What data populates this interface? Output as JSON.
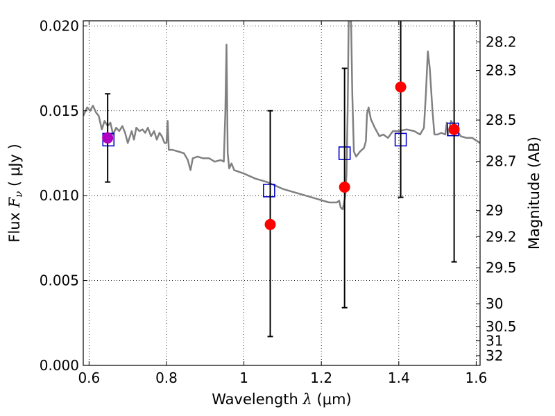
{
  "chart_data": {
    "type": "scatter",
    "xlabel": "Wavelength",
    "xlabel_symbol": "λ",
    "xlabel_unit": "(μm)",
    "ylabel": "Flux",
    "ylabel_symbol": "F",
    "ylabel_subscript": "ν",
    "ylabel_unit": "( μJy )",
    "y2label": "Magnitude (AB)",
    "xlim": [
      0.585,
      1.61
    ],
    "ylim": [
      0.0,
      0.0203
    ],
    "grid": true,
    "x_ticks": [
      {
        "value": 0.6,
        "label": "0.6"
      },
      {
        "value": 0.8,
        "label": "0.8"
      },
      {
        "value": 1.0,
        "label": "1"
      },
      {
        "value": 1.2,
        "label": "1.2"
      },
      {
        "value": 1.4,
        "label": "1.4"
      },
      {
        "value": 1.6,
        "label": "1.6"
      }
    ],
    "y_ticks": [
      {
        "value": 0.0,
        "label": "0.000"
      },
      {
        "value": 0.005,
        "label": "0.005"
      },
      {
        "value": 0.01,
        "label": "0.010"
      },
      {
        "value": 0.015,
        "label": "0.015"
      },
      {
        "value": 0.02,
        "label": "0.020"
      }
    ],
    "y2_ticks": [
      {
        "mag": 28.2,
        "label": "28.2"
      },
      {
        "mag": 28.3,
        "label": "28.3"
      },
      {
        "mag": 28.5,
        "label": "28.5"
      },
      {
        "mag": 28.7,
        "label": "28.7"
      },
      {
        "mag": 29.0,
        "label": "29"
      },
      {
        "mag": 29.2,
        "label": "29.2"
      },
      {
        "mag": 29.5,
        "label": "29.5"
      },
      {
        "mag": 30.0,
        "label": "30"
      },
      {
        "mag": 30.5,
        "label": "30.5"
      },
      {
        "mag": 31.0,
        "label": "31"
      },
      {
        "mag": 32.0,
        "label": "32"
      }
    ],
    "series": [
      {
        "kind": "line",
        "color": "#808080",
        "points": [
          [
            0.585,
            0.0147
          ],
          [
            0.595,
            0.0152
          ],
          [
            0.603,
            0.015
          ],
          [
            0.61,
            0.0153
          ],
          [
            0.618,
            0.0149
          ],
          [
            0.625,
            0.0147
          ],
          [
            0.633,
            0.0139
          ],
          [
            0.64,
            0.0144
          ],
          [
            0.648,
            0.0141
          ],
          [
            0.655,
            0.0143
          ],
          [
            0.662,
            0.0136
          ],
          [
            0.67,
            0.014
          ],
          [
            0.678,
            0.0138
          ],
          [
            0.686,
            0.0141
          ],
          [
            0.693,
            0.0137
          ],
          [
            0.7,
            0.0131
          ],
          [
            0.71,
            0.0138
          ],
          [
            0.716,
            0.0133
          ],
          [
            0.722,
            0.014
          ],
          [
            0.73,
            0.0138
          ],
          [
            0.738,
            0.0139
          ],
          [
            0.745,
            0.0137
          ],
          [
            0.752,
            0.014
          ],
          [
            0.76,
            0.0135
          ],
          [
            0.768,
            0.0138
          ],
          [
            0.775,
            0.0133
          ],
          [
            0.782,
            0.0137
          ],
          [
            0.788,
            0.0135
          ],
          [
            0.795,
            0.0131
          ],
          [
            0.8,
            0.0131
          ],
          [
            0.803,
            0.0144
          ],
          [
            0.806,
            0.0127
          ],
          [
            0.815,
            0.0127
          ],
          [
            0.83,
            0.0126
          ],
          [
            0.845,
            0.0125
          ],
          [
            0.855,
            0.0121
          ],
          [
            0.862,
            0.0115
          ],
          [
            0.868,
            0.0122
          ],
          [
            0.88,
            0.0123
          ],
          [
            0.895,
            0.0122
          ],
          [
            0.91,
            0.0122
          ],
          [
            0.925,
            0.012
          ],
          [
            0.94,
            0.0121
          ],
          [
            0.948,
            0.012
          ],
          [
            0.952,
            0.0149
          ],
          [
            0.955,
            0.0189
          ],
          [
            0.958,
            0.0125
          ],
          [
            0.962,
            0.0116
          ],
          [
            0.968,
            0.0119
          ],
          [
            0.975,
            0.0115
          ],
          [
            1.0,
            0.0113
          ],
          [
            1.03,
            0.011
          ],
          [
            1.06,
            0.0108
          ],
          [
            1.1,
            0.0104
          ],
          [
            1.13,
            0.0102
          ],
          [
            1.16,
            0.01
          ],
          [
            1.19,
            0.0098
          ],
          [
            1.22,
            0.0096
          ],
          [
            1.24,
            0.0096
          ],
          [
            1.246,
            0.0097
          ],
          [
            1.25,
            0.0093
          ],
          [
            1.255,
            0.0092
          ],
          [
            1.258,
            0.0095
          ],
          [
            1.262,
            0.01
          ],
          [
            1.265,
            0.0113
          ],
          [
            1.268,
            0.015
          ],
          [
            1.271,
            0.021
          ],
          [
            1.274,
            0.021
          ],
          [
            1.277,
            0.02
          ],
          [
            1.28,
            0.016
          ],
          [
            1.284,
            0.0126
          ],
          [
            1.29,
            0.0123
          ],
          [
            1.3,
            0.0126
          ],
          [
            1.31,
            0.0128
          ],
          [
            1.315,
            0.0132
          ],
          [
            1.318,
            0.0148
          ],
          [
            1.322,
            0.0152
          ],
          [
            1.328,
            0.0145
          ],
          [
            1.338,
            0.014
          ],
          [
            1.35,
            0.0135
          ],
          [
            1.36,
            0.0136
          ],
          [
            1.372,
            0.0134
          ],
          [
            1.385,
            0.0138
          ],
          [
            1.4,
            0.0138
          ],
          [
            1.42,
            0.0139
          ],
          [
            1.44,
            0.0138
          ],
          [
            1.455,
            0.0136
          ],
          [
            1.465,
            0.014
          ],
          [
            1.47,
            0.016
          ],
          [
            1.475,
            0.0185
          ],
          [
            1.48,
            0.0175
          ],
          [
            1.487,
            0.015
          ],
          [
            1.492,
            0.0136
          ],
          [
            1.5,
            0.0136
          ],
          [
            1.51,
            0.0137
          ],
          [
            1.52,
            0.0136
          ],
          [
            1.524,
            0.0143
          ],
          [
            1.527,
            0.0136
          ],
          [
            1.535,
            0.0144
          ],
          [
            1.55,
            0.0139
          ],
          [
            1.56,
            0.0135
          ],
          [
            1.575,
            0.0134
          ],
          [
            1.59,
            0.0134
          ],
          [
            1.61,
            0.0131
          ]
        ]
      },
      {
        "kind": "open_square",
        "color": "#0000cc",
        "points": [
          [
            0.65,
            0.0133
          ],
          [
            1.065,
            0.0103
          ],
          [
            1.26,
            0.0125
          ],
          [
            1.405,
            0.0133
          ],
          [
            1.54,
            0.0139
          ]
        ]
      },
      {
        "kind": "filled_circle",
        "color": "#ff0000",
        "highlight_color": "#b000c0",
        "points": [
          {
            "x": 0.648,
            "y": 0.0134,
            "err_low": 0.0108,
            "err_high": 0.016,
            "highlight": true
          },
          {
            "x": 1.068,
            "y": 0.0083,
            "err_low": 0.0017,
            "err_high": 0.015
          },
          {
            "x": 1.26,
            "y": 0.0105,
            "err_low": 0.0034,
            "err_high": 0.0175
          },
          {
            "x": 1.405,
            "y": 0.0164,
            "err_low": 0.0099,
            "err_high": 0.021
          },
          {
            "x": 1.543,
            "y": 0.0139,
            "err_low": 0.0061,
            "err_high": 0.021
          }
        ]
      }
    ]
  }
}
